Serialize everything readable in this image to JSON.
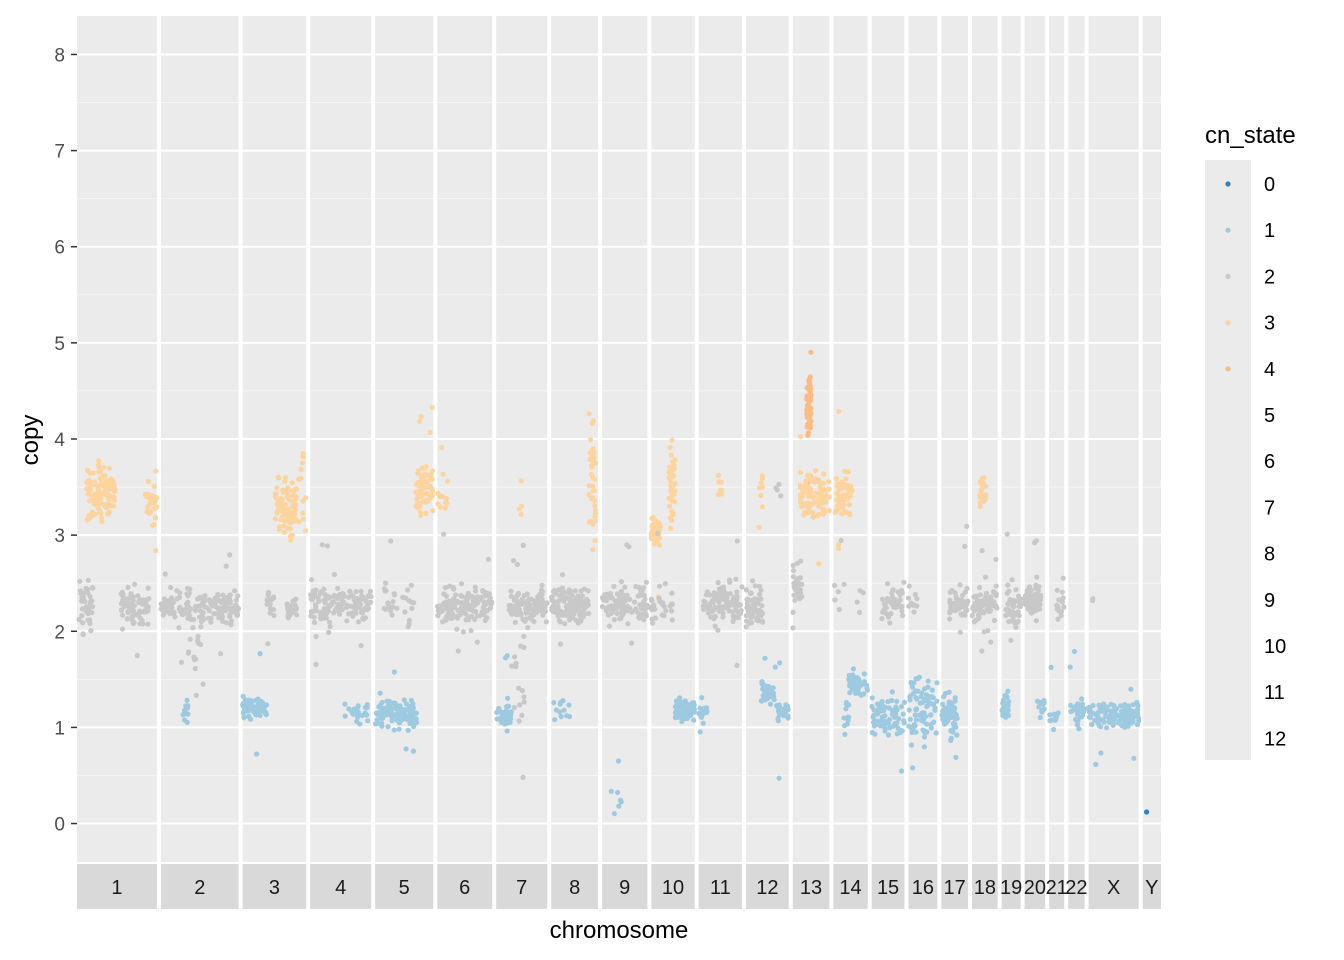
{
  "chart_data": {
    "type": "scatter",
    "title": "",
    "xlabel": "chromosome",
    "ylabel": "copy",
    "ylim": [
      -0.4,
      8.4
    ],
    "y_ticks": [
      0,
      1,
      2,
      3,
      4,
      5,
      6,
      7,
      8
    ],
    "grid": true,
    "legend": {
      "title": "cn_state",
      "position": "right",
      "entries": [
        {
          "label": "0",
          "color": "#3182bd"
        },
        {
          "label": "1",
          "color": "#9ecae1"
        },
        {
          "label": "2",
          "color": "#c8c8c8"
        },
        {
          "label": "3",
          "color": "#fdd49e"
        },
        {
          "label": "4",
          "color": "#fdbb84"
        },
        {
          "label": "5",
          "color": "#ebebeb"
        },
        {
          "label": "6",
          "color": "#ebebeb"
        },
        {
          "label": "7",
          "color": "#ebebeb"
        },
        {
          "label": "8",
          "color": "#ebebeb"
        },
        {
          "label": "9",
          "color": "#ebebeb"
        },
        {
          "label": "10",
          "color": "#ebebeb"
        },
        {
          "label": "11",
          "color": "#ebebeb"
        },
        {
          "label": "12",
          "color": "#ebebeb"
        }
      ]
    },
    "facets": [
      {
        "label": "1",
        "size": 249,
        "clusters": [
          {
            "state": 2,
            "pos": [
              0.0,
              0.2
            ],
            "copy": 2.28,
            "spread": 0.12,
            "n": 40
          },
          {
            "state": 3,
            "pos": [
              0.12,
              0.48
            ],
            "copy": 3.45,
            "spread": 0.12,
            "n": 110
          },
          {
            "state": 2,
            "pos": [
              0.55,
              0.9
            ],
            "copy": 2.25,
            "spread": 0.1,
            "n": 80
          },
          {
            "state": 3,
            "pos": [
              0.85,
              1.0
            ],
            "copy": 3.35,
            "spread": 0.15,
            "n": 30
          }
        ]
      },
      {
        "label": "2",
        "size": 242,
        "clusters": [
          {
            "state": 2,
            "pos": [
              0.0,
              1.0
            ],
            "copy": 2.25,
            "spread": 0.08,
            "n": 160
          },
          {
            "state": 1,
            "pos": [
              0.28,
              0.35
            ],
            "copy": 1.15,
            "spread": 0.08,
            "n": 12
          },
          {
            "state": 2,
            "pos": [
              0.35,
              0.55
            ],
            "copy": 1.8,
            "spread": 0.35,
            "n": 20
          }
        ]
      },
      {
        "label": "3",
        "size": 198,
        "clusters": [
          {
            "state": 1,
            "pos": [
              0.0,
              0.38
            ],
            "copy": 1.2,
            "spread": 0.06,
            "n": 70
          },
          {
            "state": 2,
            "pos": [
              0.38,
              0.5
            ],
            "copy": 2.28,
            "spread": 0.08,
            "n": 20
          },
          {
            "state": 3,
            "pos": [
              0.5,
              0.85
            ],
            "copy": 3.3,
            "spread": 0.15,
            "n": 90
          },
          {
            "state": 2,
            "pos": [
              0.7,
              0.85
            ],
            "copy": 2.25,
            "spread": 0.06,
            "n": 20
          },
          {
            "state": 3,
            "pos": [
              0.88,
              1.0
            ],
            "copy": 3.4,
            "spread": 0.2,
            "n": 12
          }
        ]
      },
      {
        "label": "4",
        "size": 190,
        "clusters": [
          {
            "state": 2,
            "pos": [
              0.0,
              1.0
            ],
            "copy": 2.28,
            "spread": 0.09,
            "n": 140
          },
          {
            "state": 1,
            "pos": [
              0.55,
              0.95
            ],
            "copy": 1.15,
            "spread": 0.06,
            "n": 25
          }
        ]
      },
      {
        "label": "5",
        "size": 181,
        "clusters": [
          {
            "state": 2,
            "pos": [
              0.15,
              0.7
            ],
            "copy": 2.3,
            "spread": 0.12,
            "n": 30
          },
          {
            "state": 1,
            "pos": [
              0.0,
              0.72
            ],
            "copy": 1.15,
            "spread": 0.07,
            "n": 110
          },
          {
            "state": 3,
            "pos": [
              0.7,
              1.0
            ],
            "copy": 3.5,
            "spread": 0.14,
            "n": 80
          }
        ]
      },
      {
        "label": "6",
        "size": 171,
        "clusters": [
          {
            "state": 3,
            "pos": [
              0.0,
              0.2
            ],
            "copy": 3.35,
            "spread": 0.1,
            "n": 12
          },
          {
            "state": 2,
            "pos": [
              0.0,
              1.0
            ],
            "copy": 2.28,
            "spread": 0.09,
            "n": 140
          }
        ]
      },
      {
        "label": "7",
        "size": 159,
        "clusters": [
          {
            "state": 1,
            "pos": [
              0.0,
              0.3
            ],
            "copy": 1.12,
            "spread": 0.06,
            "n": 45
          },
          {
            "state": 2,
            "pos": [
              0.25,
              1.0
            ],
            "copy": 2.25,
            "spread": 0.09,
            "n": 110
          },
          {
            "state": 2,
            "pos": [
              0.3,
              0.55
            ],
            "copy": 1.4,
            "spread": 0.25,
            "n": 15
          },
          {
            "state": 3,
            "pos": [
              0.45,
              0.5
            ],
            "copy": 3.3,
            "spread": 0.06,
            "n": 4
          }
        ]
      },
      {
        "label": "8",
        "size": 146,
        "clusters": [
          {
            "state": 1,
            "pos": [
              0.05,
              0.45
            ],
            "copy": 1.18,
            "spread": 0.06,
            "n": 12
          },
          {
            "state": 2,
            "pos": [
              0.0,
              0.8
            ],
            "copy": 2.28,
            "spread": 0.09,
            "n": 110
          },
          {
            "state": 3,
            "pos": [
              0.8,
              0.95
            ],
            "copy": 3.6,
            "spread": 0.25,
            "n": 40
          }
        ]
      },
      {
        "label": "9",
        "size": 141,
        "clusters": [
          {
            "state": 2,
            "pos": [
              0.0,
              1.0
            ],
            "copy": 2.28,
            "spread": 0.1,
            "n": 110
          },
          {
            "state": 1,
            "pos": [
              0.2,
              0.45
            ],
            "copy": 0.5,
            "spread": 0.25,
            "n": 7
          }
        ]
      },
      {
        "label": "10",
        "size": 135,
        "clusters": [
          {
            "state": 3,
            "pos": [
              0.0,
              0.2
            ],
            "copy": 3.05,
            "spread": 0.08,
            "n": 45
          },
          {
            "state": 2,
            "pos": [
              0.0,
              0.5
            ],
            "copy": 2.25,
            "spread": 0.09,
            "n": 30
          },
          {
            "state": 3,
            "pos": [
              0.4,
              0.55
            ],
            "copy": 3.5,
            "spread": 0.2,
            "n": 40
          },
          {
            "state": 1,
            "pos": [
              0.55,
              1.0
            ],
            "copy": 1.18,
            "spread": 0.06,
            "n": 70
          }
        ]
      },
      {
        "label": "11",
        "size": 135,
        "clusters": [
          {
            "state": 1,
            "pos": [
              0.0,
              0.2
            ],
            "copy": 1.18,
            "spread": 0.06,
            "n": 20
          },
          {
            "state": 2,
            "pos": [
              0.1,
              1.0
            ],
            "copy": 2.3,
            "spread": 0.1,
            "n": 110
          },
          {
            "state": 3,
            "pos": [
              0.45,
              0.55
            ],
            "copy": 3.5,
            "spread": 0.12,
            "n": 8
          }
        ]
      },
      {
        "label": "12",
        "size": 133,
        "clusters": [
          {
            "state": 2,
            "pos": [
              0.0,
              0.4
            ],
            "copy": 2.25,
            "spread": 0.1,
            "n": 60
          },
          {
            "state": 1,
            "pos": [
              0.35,
              0.65
            ],
            "copy": 1.35,
            "spread": 0.05,
            "n": 40
          },
          {
            "state": 3,
            "pos": [
              0.3,
              0.4
            ],
            "copy": 3.45,
            "spread": 0.15,
            "n": 8
          },
          {
            "state": 1,
            "pos": [
              0.65,
              0.8
            ],
            "copy": 1.18,
            "spread": 0.05,
            "n": 15
          },
          {
            "state": 1,
            "pos": [
              0.85,
              1.0
            ],
            "copy": 1.15,
            "spread": 0.04,
            "n": 12
          },
          {
            "state": 2,
            "pos": [
              0.7,
              0.9
            ],
            "copy": 3.45,
            "spread": 0.06,
            "n": 4
          }
        ]
      },
      {
        "label": "13",
        "size": 114,
        "clusters": [
          {
            "state": 2,
            "pos": [
              0.0,
              0.25
            ],
            "copy": 2.45,
            "spread": 0.12,
            "n": 30
          },
          {
            "state": 4,
            "pos": [
              0.38,
              0.5
            ],
            "copy": 4.35,
            "spread": 0.16,
            "n": 60
          },
          {
            "state": 3,
            "pos": [
              0.2,
              1.0
            ],
            "copy": 3.4,
            "spread": 0.1,
            "n": 110
          }
        ]
      },
      {
        "label": "14",
        "size": 107,
        "clusters": [
          {
            "state": 3,
            "pos": [
              0.05,
              0.55
            ],
            "copy": 3.45,
            "spread": 0.1,
            "n": 60
          },
          {
            "state": 1,
            "pos": [
              0.45,
              1.0
            ],
            "copy": 1.45,
            "spread": 0.06,
            "n": 50
          },
          {
            "state": 1,
            "pos": [
              0.3,
              0.5
            ],
            "copy": 1.15,
            "spread": 0.15,
            "n": 12
          },
          {
            "state": 2,
            "pos": [
              0.0,
              0.9
            ],
            "copy": 2.3,
            "spread": 0.15,
            "n": 10
          }
        ]
      },
      {
        "label": "15",
        "size": 102,
        "clusters": [
          {
            "state": 1,
            "pos": [
              0.0,
              1.0
            ],
            "copy": 1.1,
            "spread": 0.1,
            "n": 70
          },
          {
            "state": 2,
            "pos": [
              0.3,
              1.0
            ],
            "copy": 2.3,
            "spread": 0.1,
            "n": 40
          }
        ]
      },
      {
        "label": "16",
        "size": 90,
        "clusters": [
          {
            "state": 1,
            "pos": [
              0.0,
              1.0
            ],
            "copy": 1.2,
            "spread": 0.15,
            "n": 80
          },
          {
            "state": 2,
            "pos": [
              0.0,
              0.3
            ],
            "copy": 2.3,
            "spread": 0.08,
            "n": 10
          }
        ]
      },
      {
        "label": "17",
        "size": 83,
        "clusters": [
          {
            "state": 1,
            "pos": [
              0.0,
              0.6
            ],
            "copy": 1.15,
            "spread": 0.12,
            "n": 60
          },
          {
            "state": 2,
            "pos": [
              0.3,
              1.0
            ],
            "copy": 2.3,
            "spread": 0.12,
            "n": 50
          }
        ]
      },
      {
        "label": "18",
        "size": 80,
        "clusters": [
          {
            "state": 3,
            "pos": [
              0.3,
              0.55
            ],
            "copy": 3.45,
            "spread": 0.1,
            "n": 20
          },
          {
            "state": 2,
            "pos": [
              0.0,
              1.0
            ],
            "copy": 2.28,
            "spread": 0.09,
            "n": 70
          }
        ]
      },
      {
        "label": "19",
        "size": 59,
        "clusters": [
          {
            "state": 1,
            "pos": [
              0.0,
              0.4
            ],
            "copy": 1.25,
            "spread": 0.08,
            "n": 30
          },
          {
            "state": 2,
            "pos": [
              0.2,
              1.0
            ],
            "copy": 2.25,
            "spread": 0.12,
            "n": 45
          }
        ]
      },
      {
        "label": "20",
        "size": 64,
        "clusters": [
          {
            "state": 2,
            "pos": [
              0.0,
              0.8
            ],
            "copy": 2.32,
            "spread": 0.08,
            "n": 80
          },
          {
            "state": 1,
            "pos": [
              0.6,
              1.0
            ],
            "copy": 1.18,
            "spread": 0.05,
            "n": 12
          }
        ]
      },
      {
        "label": "21",
        "size": 47,
        "clusters": [
          {
            "state": 1,
            "pos": [
              0.0,
              0.6
            ],
            "copy": 1.12,
            "spread": 0.06,
            "n": 12
          },
          {
            "state": 2,
            "pos": [
              0.5,
              1.0
            ],
            "copy": 2.3,
            "spread": 0.1,
            "n": 15
          }
        ]
      },
      {
        "label": "22",
        "size": 51,
        "clusters": [
          {
            "state": 1,
            "pos": [
              0.0,
              1.0
            ],
            "copy": 1.15,
            "spread": 0.1,
            "n": 35
          }
        ]
      },
      {
        "label": "X",
        "size": 156,
        "clusters": [
          {
            "state": 1,
            "pos": [
              0.0,
              1.0
            ],
            "copy": 1.13,
            "spread": 0.06,
            "n": 120
          },
          {
            "state": 2,
            "pos": [
              0.05,
              0.1
            ],
            "copy": 2.35,
            "spread": 0.02,
            "n": 2
          }
        ]
      },
      {
        "label": "Y",
        "size": 57,
        "clusters": [
          {
            "state": 0,
            "pos": [
              0.2,
              0.3
            ],
            "copy": 0.12,
            "spread": 0.0,
            "n": 1
          }
        ]
      }
    ]
  }
}
